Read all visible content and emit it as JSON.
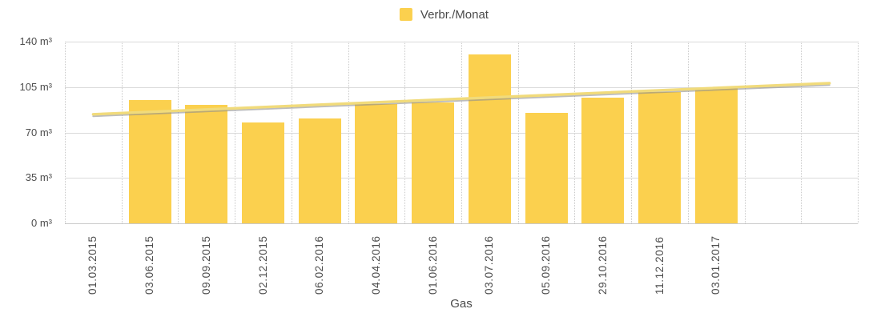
{
  "legend": {
    "label": "Verbr./Monat",
    "swatch_color": "#fbd04e"
  },
  "colors": {
    "bar": "#fbd04e",
    "trend_line": "#f1db7b",
    "trend_shadow": "#8f8f8f",
    "grid_solid": "#dbdbdb",
    "grid_dotted": "#c9c9c9",
    "text": "#4d4d4d"
  },
  "y_axis": {
    "tick_labels": [
      "140 m³",
      "105 m³",
      "70 m³",
      "35 m³",
      "0 m³"
    ]
  },
  "x_axis": {
    "title": "Gas",
    "labels": [
      "01.03.2015",
      "03.06.2015",
      "09.09.2015",
      "02.12.2015",
      "06.02.2016",
      "04.04.2016",
      "01.06.2016",
      "03.07.2016",
      "05.09.2016",
      "29.10.2016",
      "11.12.2016",
      "03.01.2017"
    ]
  },
  "chart_data": {
    "type": "bar",
    "title": "",
    "xlabel": "Gas",
    "ylabel": "",
    "y_unit": "m³",
    "ylim": [
      0,
      140
    ],
    "y_ticks": [
      0,
      35,
      70,
      105,
      140
    ],
    "legend_position": "top",
    "grid": {
      "horizontal": "solid",
      "vertical": "dotted"
    },
    "categories": [
      "01.03.2015",
      "03.06.2015",
      "09.09.2015",
      "02.12.2015",
      "06.02.2016",
      "04.04.2016",
      "01.06.2016",
      "03.07.2016",
      "05.09.2016",
      "29.10.2016",
      "11.12.2016",
      "03.01.2017"
    ],
    "series": [
      {
        "name": "Verbr./Monat",
        "type": "bar",
        "values": [
          null,
          95,
          91,
          78,
          81,
          92,
          93,
          130,
          85,
          97,
          101,
          104
        ]
      },
      {
        "name": "Trend",
        "type": "line",
        "start_value": 84,
        "end_value": 108,
        "spans_bands": [
          1,
          14
        ]
      }
    ],
    "total_bands": 14,
    "empty_trailing_bands": 2
  }
}
